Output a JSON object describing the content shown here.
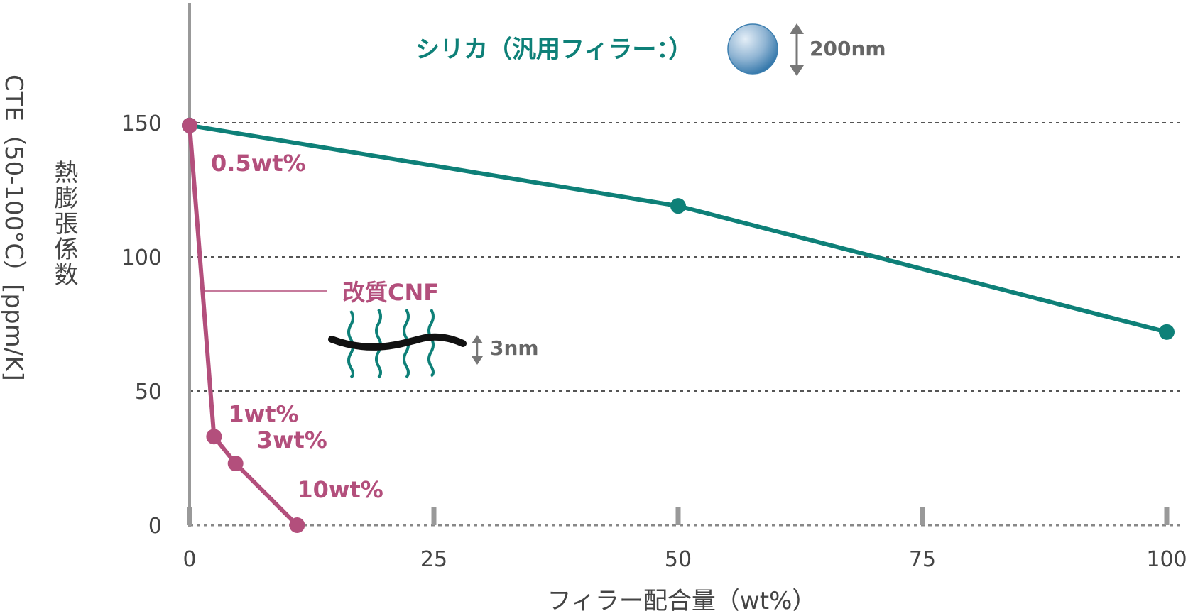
{
  "chart_data": {
    "type": "line",
    "xlabel": "フィラー配合量（wt%）",
    "ylabel_vertical": "熱膨張係数",
    "ylabel_rotated": "CTE（50-100°C）[ppm/K]",
    "xlim": [
      0,
      100
    ],
    "ylim": [
      0,
      150
    ],
    "x_ticks": [
      "0",
      "25",
      "50",
      "75",
      "100"
    ],
    "y_ticks": [
      "0",
      "50",
      "100",
      "150"
    ],
    "grid": "horizontal dashed",
    "series": [
      {
        "name": "シリカ（汎用フィラー：）",
        "color": "#0e8078",
        "x": [
          0,
          50,
          100
        ],
        "y": [
          149,
          119,
          72
        ]
      },
      {
        "name": "改質CNF",
        "color": "#b34f7c",
        "x": [
          0,
          2.5,
          4.7,
          11
        ],
        "y": [
          149,
          33,
          23,
          0
        ],
        "point_labels": [
          "0.5wt%",
          "1wt%",
          "3wt%",
          "10wt%"
        ]
      }
    ],
    "annotations": {
      "silica_size": "200nm",
      "cnf_size": "3nm"
    }
  }
}
